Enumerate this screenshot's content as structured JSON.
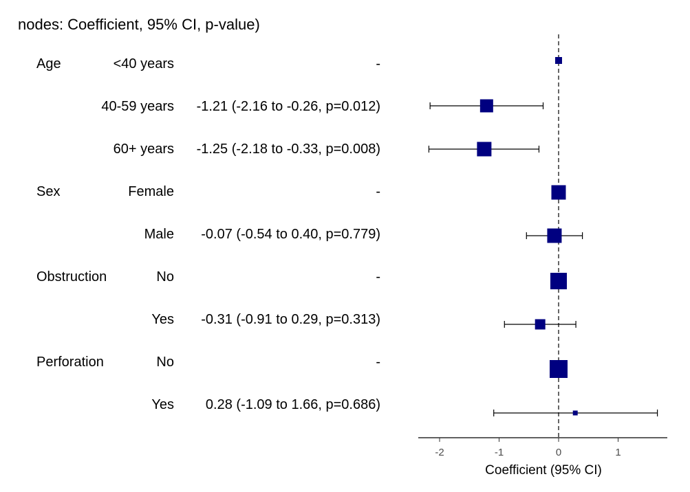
{
  "chart_data": {
    "type": "forest",
    "title": "nodes: Coefficient, 95% CI, p-value)",
    "xlabel": "Coefficient (95% CI)",
    "xticks": [
      -2,
      -1,
      0,
      1
    ],
    "xlim": [
      -2.35,
      1.85
    ],
    "reference_line": 0,
    "marker_color": "#000080",
    "rows": [
      {
        "variable": "Age",
        "level": "<40 years",
        "estimate_text": "-",
        "coef": 0,
        "ci": null,
        "size": 1.0
      },
      {
        "variable": "",
        "level": "40-59 years",
        "estimate_text": "-1.21 (-2.16 to -0.26, p=0.012)",
        "coef": -1.21,
        "ci": [
          -2.16,
          -0.26
        ],
        "size": 1.9
      },
      {
        "variable": "",
        "level": "60+ years",
        "estimate_text": "-1.25 (-2.18 to -0.33, p=0.008)",
        "coef": -1.25,
        "ci": [
          -2.18,
          -0.33
        ],
        "size": 2.1
      },
      {
        "variable": "Sex",
        "level": "Female",
        "estimate_text": "-",
        "coef": 0,
        "ci": null,
        "size": 2.1
      },
      {
        "variable": "",
        "level": "Male",
        "estimate_text": "-0.07 (-0.54 to 0.40, p=0.779)",
        "coef": -0.07,
        "ci": [
          -0.54,
          0.4
        ],
        "size": 2.1
      },
      {
        "variable": "Obstruction",
        "level": "No",
        "estimate_text": "-",
        "coef": 0,
        "ci": null,
        "size": 2.4
      },
      {
        "variable": "",
        "level": "Yes",
        "estimate_text": "-0.31 (-0.91 to 0.29, p=0.313)",
        "coef": -0.31,
        "ci": [
          -0.91,
          0.29
        ],
        "size": 1.5
      },
      {
        "variable": "Perforation",
        "level": "No",
        "estimate_text": "-",
        "coef": 0,
        "ci": null,
        "size": 2.6
      },
      {
        "variable": "",
        "level": "Yes",
        "estimate_text": "0.28 (-1.09 to 1.66, p=0.686)",
        "coef": 0.28,
        "ci": [
          -1.09,
          1.66
        ],
        "size": 0.7
      }
    ]
  }
}
